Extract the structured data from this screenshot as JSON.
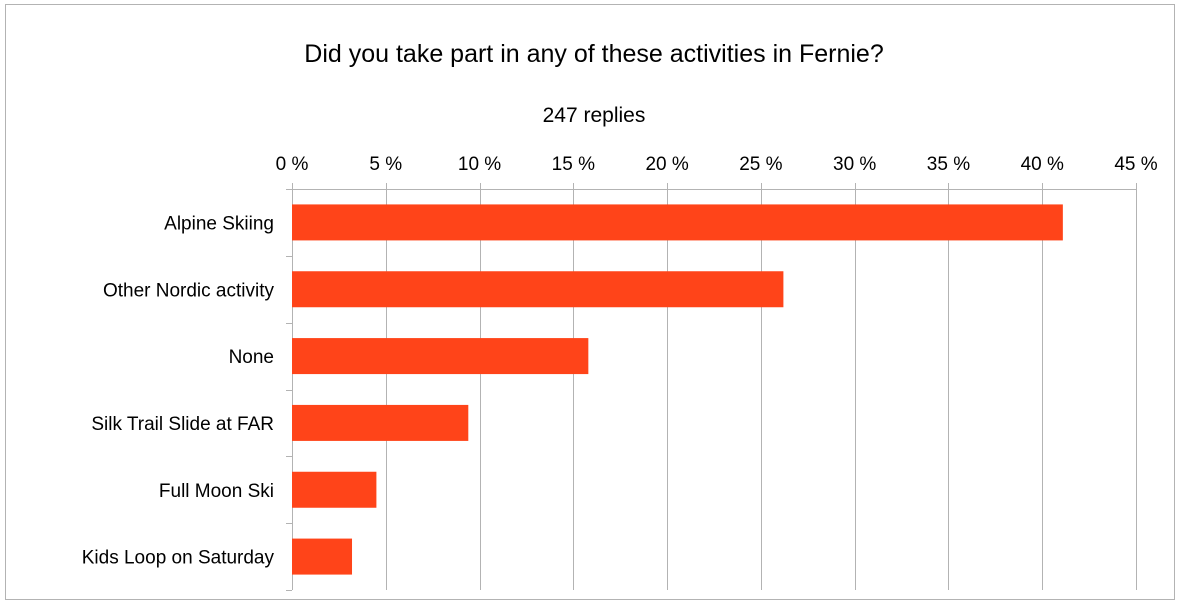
{
  "chart_data": {
    "type": "bar",
    "orientation": "horizontal",
    "title": "Did you take part in any of these activities in Fernie?",
    "subtitle": "247 replies",
    "categories": [
      "Alpine Skiing",
      "Other Nordic activity",
      "None",
      "Silk Trail Slide at FAR",
      "Full Moon Ski",
      "Kids Loop on Saturday"
    ],
    "values": [
      41.1,
      26.2,
      15.8,
      9.4,
      4.5,
      3.2
    ],
    "xlim": [
      0,
      45
    ],
    "xticks": [
      0,
      5,
      10,
      15,
      20,
      25,
      30,
      35,
      40,
      45
    ],
    "tick_labels": [
      "0 %",
      "5 %",
      "10 %",
      "15 %",
      "20 %",
      "25 %",
      "30 %",
      "35 %",
      "40 %",
      "45 %"
    ],
    "x_axis_position": "top",
    "grid": true,
    "legend": "none",
    "bar_color": "#ff4419",
    "grid_color": "#b3b3b3"
  }
}
